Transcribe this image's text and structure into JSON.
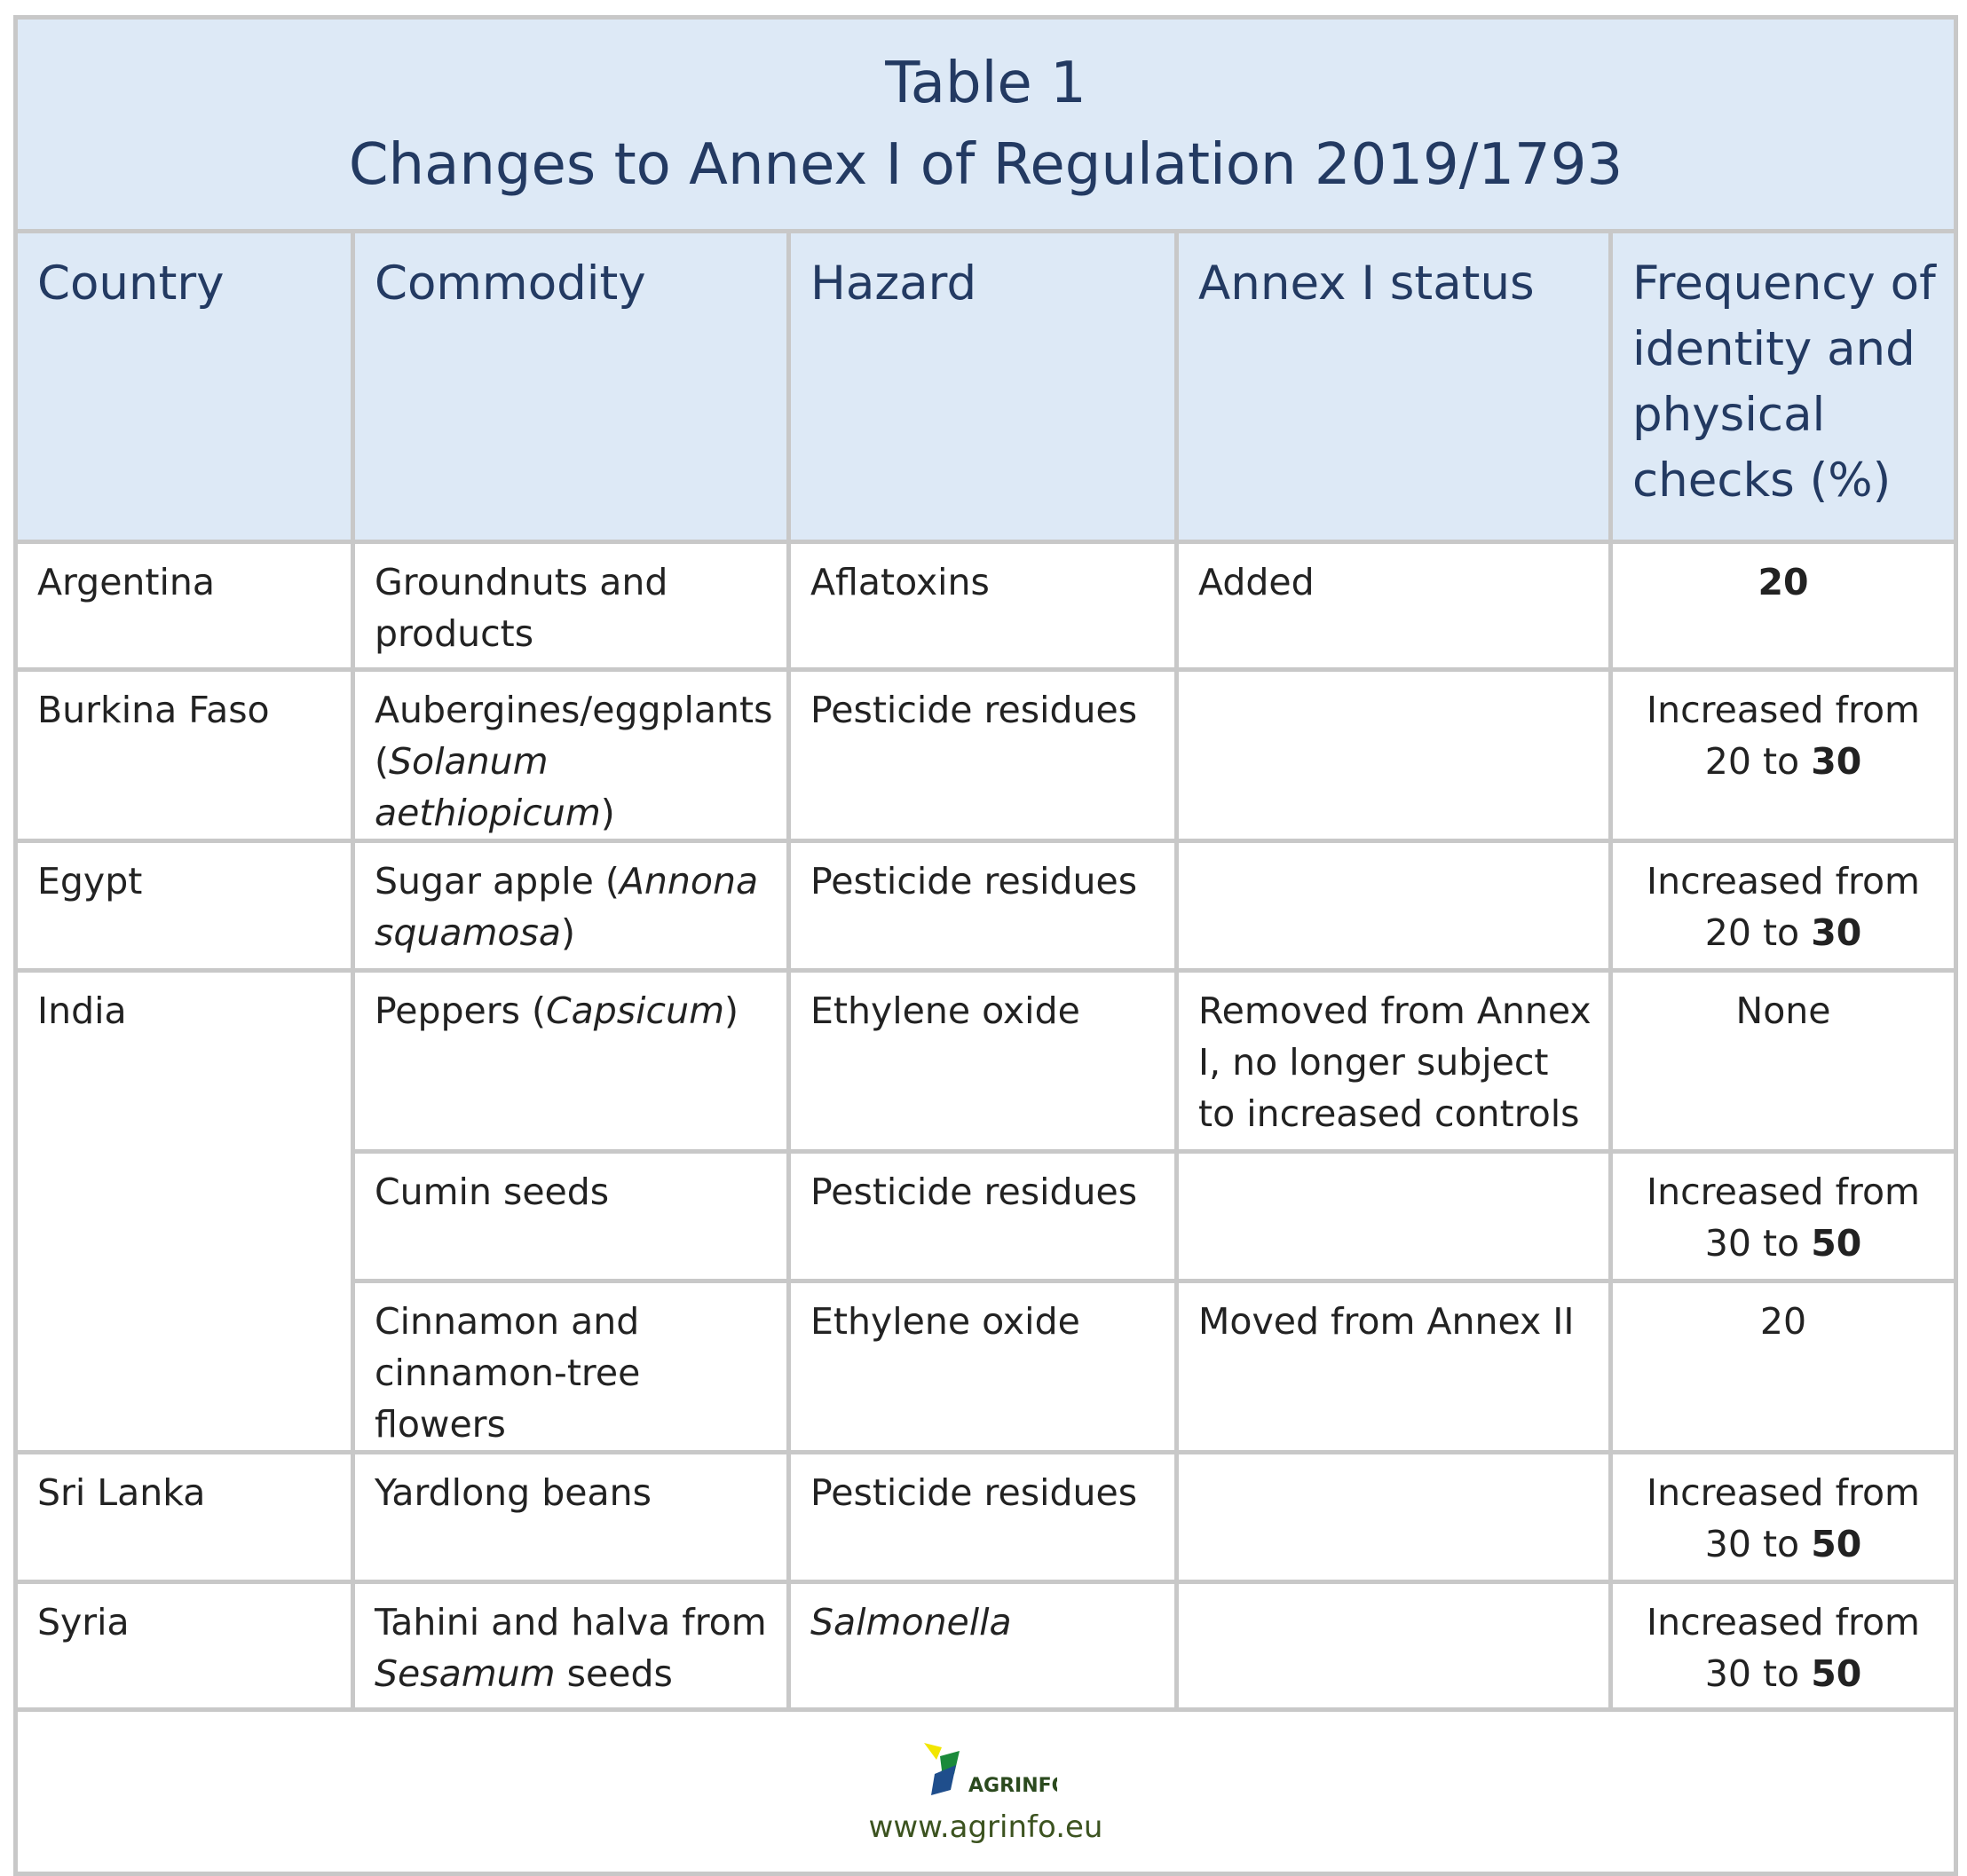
{
  "title": {
    "line1": "Table 1",
    "line2": "Changes to Annex I of Regulation 2019/1793"
  },
  "table": {
    "columns": [
      "Country",
      "Commodity",
      "Hazard",
      "Annex I status",
      "Frequency of identity and physical checks (%)"
    ],
    "groups": [
      {
        "country": "Argentina",
        "items": [
          {
            "commodity": "Groundnuts and products",
            "hazard": "Aflatoxins",
            "status": "Added",
            "frequency": [
              {
                "text": "20",
                "style": "bold"
              }
            ]
          }
        ]
      },
      {
        "country": "Burkina Faso",
        "items": [
          {
            "commodity": [
              "Aubergines/eggplants (",
              {
                "text": "Solanum aethiopicum",
                "style": "italic"
              },
              ")"
            ],
            "hazard": "Pesticide residues",
            "status": null,
            "frequency": [
              "Increased from 20 to ",
              {
                "text": "30",
                "style": "bold"
              }
            ]
          }
        ]
      },
      {
        "country": "Egypt",
        "items": [
          {
            "commodity": [
              "Sugar apple (",
              {
                "text": "Annona squamosa",
                "style": "italic"
              },
              ")"
            ],
            "hazard": "Pesticide residues",
            "status": null,
            "frequency": [
              "Increased from 20 to ",
              {
                "text": "30",
                "style": "bold"
              }
            ]
          }
        ]
      },
      {
        "country": "India",
        "items": [
          {
            "commodity": [
              "Peppers (",
              {
                "text": "Capsicum",
                "style": "italic"
              },
              ")"
            ],
            "hazard": "Ethylene oxide",
            "status": "Removed from Annex I, no longer subject to increased controls",
            "frequency": "None"
          },
          {
            "commodity": "Cumin seeds",
            "hazard": "Pesticide residues",
            "status": null,
            "frequency": [
              "Increased from 30 to ",
              {
                "text": "50",
                "style": "bold"
              }
            ]
          },
          {
            "commodity": "Cinnamon and cinnamon-tree flowers",
            "hazard": "Ethylene oxide",
            "status": "Moved from Annex II",
            "frequency": "20"
          }
        ]
      },
      {
        "country": "Sri Lanka",
        "items": [
          {
            "commodity": "Yardlong beans",
            "hazard": "Pesticide residues",
            "status": null,
            "frequency": [
              "Increased from 30 to ",
              {
                "text": "50",
                "style": "bold"
              }
            ]
          }
        ]
      },
      {
        "country": "Syria",
        "items": [
          {
            "commodity": [
              "Tahini and halva from ",
              {
                "text": "Sesamum",
                "style": "italic"
              },
              " seeds"
            ],
            "hazard": [
              {
                "text": "Salmonella",
                "style": "italic"
              }
            ],
            "status": null,
            "frequency": [
              "Increased from 30 to ",
              {
                "text": "50",
                "style": "bold"
              }
            ]
          }
        ]
      }
    ]
  },
  "footer": {
    "logo_text": "AGRINFO",
    "url": "www.agrinfo.eu"
  }
}
